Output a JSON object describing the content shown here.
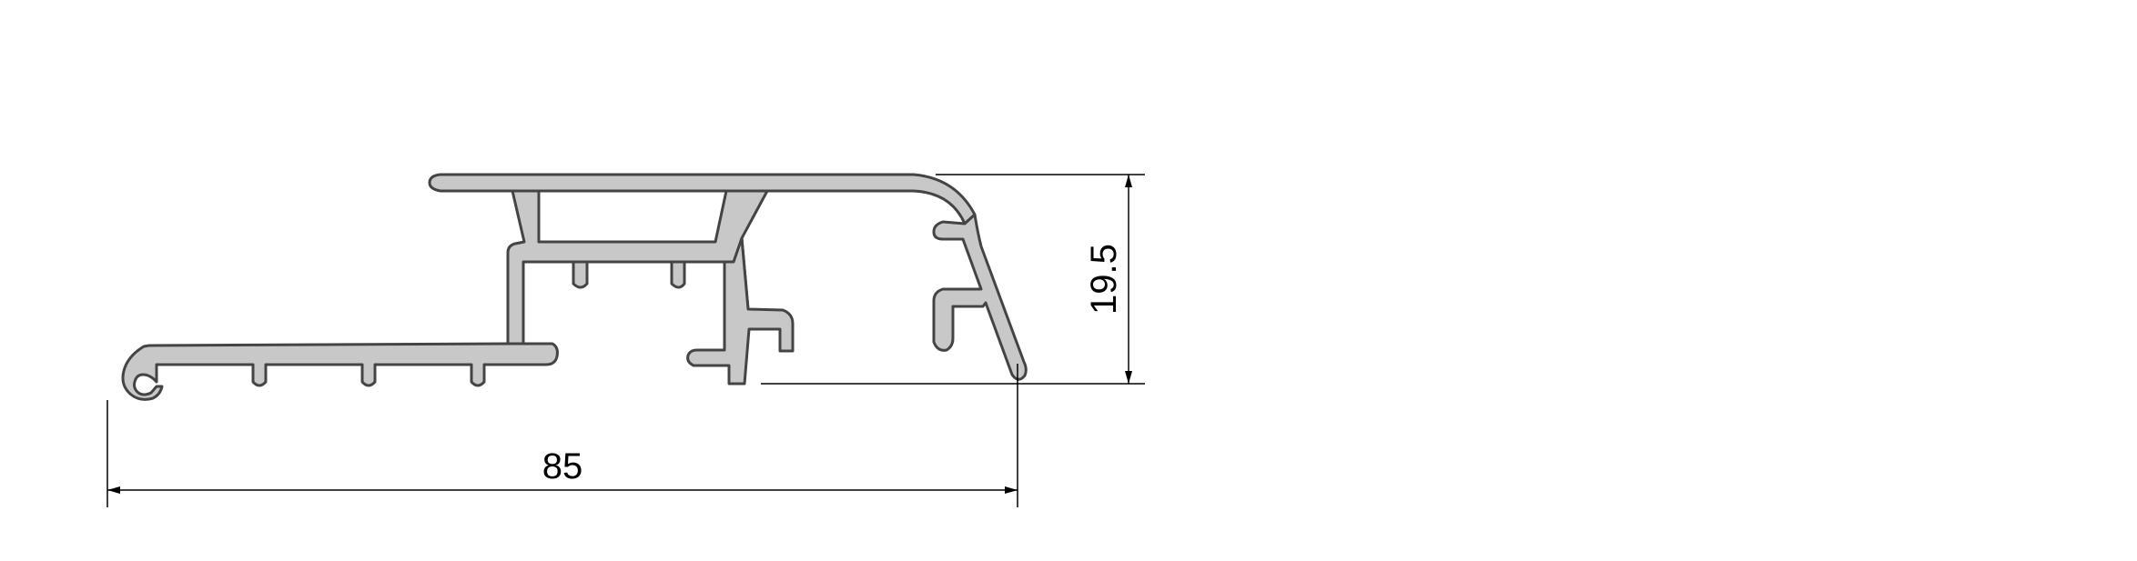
{
  "drawing": {
    "dimensions": {
      "width_label": "85",
      "height_label": "19.5"
    },
    "colors": {
      "profile_fill": "#c8c8c8",
      "profile_stroke": "#444444",
      "dimension_lines": "#000000",
      "background": "#ffffff"
    }
  }
}
